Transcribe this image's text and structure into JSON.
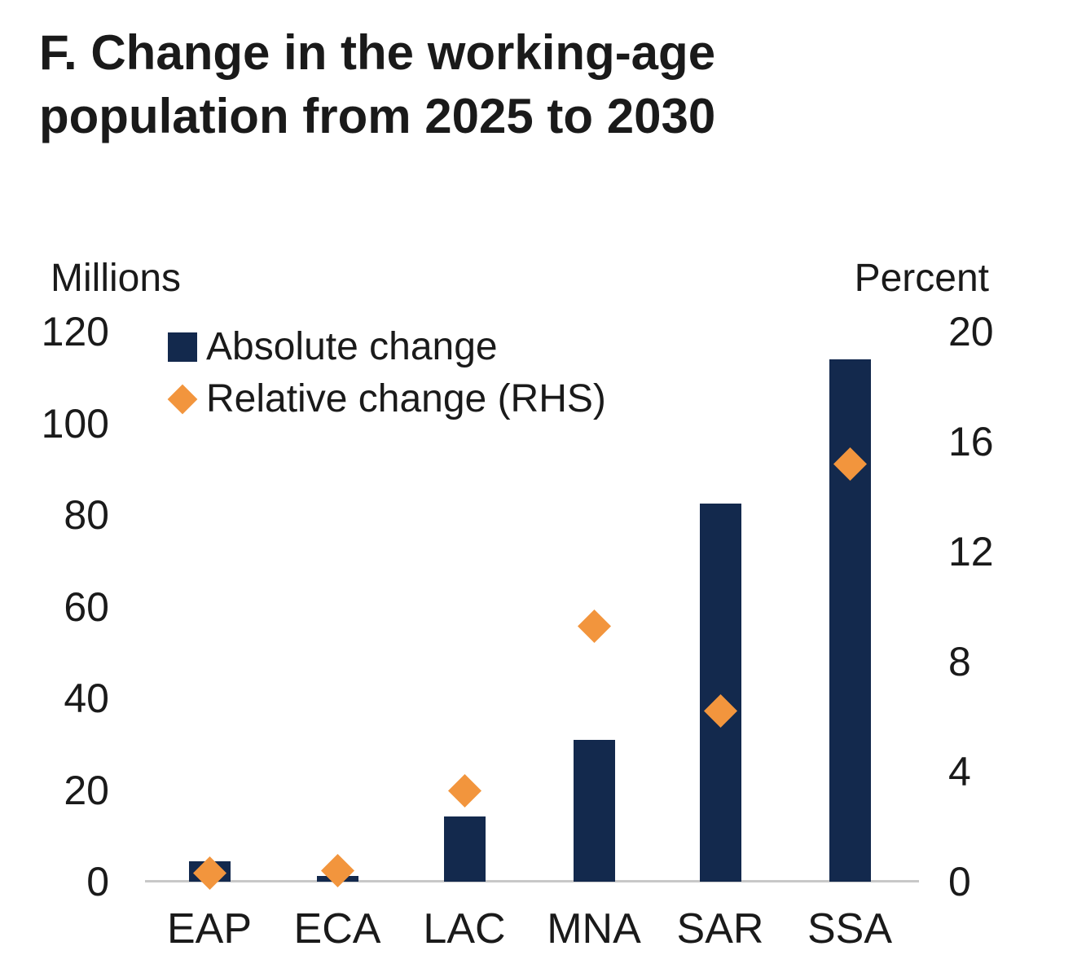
{
  "title": "F. Change in the working-age population from 2025 to 2030",
  "colors": {
    "bar_navy": "#13294d",
    "marker_orange": "#f2953d",
    "axis_line_gray": "#c8c8c8",
    "text": "#1a1a1a"
  },
  "legend": {
    "items": [
      {
        "label": "Absolute change",
        "marker": "navy-square"
      },
      {
        "label": "Relative change (RHS)",
        "marker": "orange-diamond"
      }
    ]
  },
  "chart_data": {
    "type": "bar",
    "subtype": "dual-axis bar with scatter overlay",
    "title": "F. Change in the working-age population from 2025 to 2030",
    "categories": [
      "EAP",
      "ECA",
      "LAC",
      "MNA",
      "SAR",
      "SSA"
    ],
    "series": [
      {
        "name": "Absolute change",
        "render": "bar",
        "axis": "left",
        "values": [
          4.5,
          1.2,
          14.3,
          31,
          82.5,
          114
        ]
      },
      {
        "name": "Relative change (RHS)",
        "render": "scatter-diamond",
        "axis": "right",
        "values": [
          0.3,
          0.4,
          3.3,
          9.3,
          6.2,
          15.2
        ]
      }
    ],
    "left_axis": {
      "label": "Millions",
      "min": 0,
      "max": 120,
      "ticks": [
        0,
        20,
        40,
        60,
        80,
        100,
        120
      ]
    },
    "right_axis": {
      "label": "Percent",
      "min": 0,
      "max": 20,
      "ticks": [
        0,
        4,
        8,
        12,
        16,
        20
      ]
    },
    "grid": false,
    "legend_position": "top-left inside plot area"
  }
}
